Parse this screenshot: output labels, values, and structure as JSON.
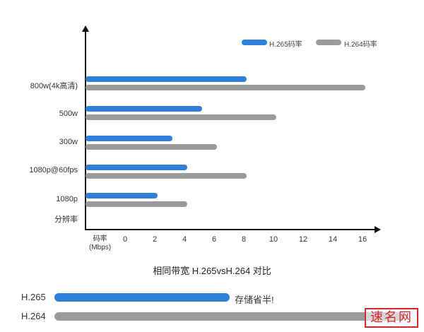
{
  "chart_data": {
    "type": "bar",
    "orientation": "horizontal",
    "title": "相同带宽 H.265vsH.264 对比",
    "xlabel": "码率 (Mbps)",
    "ylabel": "分辨率",
    "xlim": [
      0,
      16
    ],
    "xticks": [
      "0",
      "2",
      "4",
      "6",
      "8",
      "10",
      "12",
      "14",
      "16"
    ],
    "categories": [
      "800w(4k高清)",
      "500w",
      "300w",
      "1080p@60fps",
      "1080p"
    ],
    "series": [
      {
        "name": "H.265码率",
        "color": "#2f7fd8",
        "values": [
          8,
          5,
          3,
          4,
          2
        ]
      },
      {
        "name": "H.264码率",
        "color": "#9a9a9a",
        "values": [
          16,
          10,
          6,
          8,
          4
        ]
      }
    ],
    "legend_position": "top-right",
    "grid": false
  },
  "legend": {
    "h265": "H.265码率",
    "h264": "H.264码率"
  },
  "axis": {
    "y_title": "分辨率",
    "x_title_line1": "码率",
    "x_title_line2": "(Mbps)",
    "ticks": [
      "0",
      "2",
      "4",
      "6",
      "8",
      "10",
      "12",
      "14",
      "16"
    ]
  },
  "categories": [
    "800w(4k高清)",
    "500w",
    "300w",
    "1080p@60fps",
    "1080p"
  ],
  "title": "相同带宽 H.265vsH.264 对比",
  "comparison": {
    "h265_label": "H.265",
    "h264_label": "H.264",
    "note": "存储省半!"
  },
  "watermark": "速名网"
}
